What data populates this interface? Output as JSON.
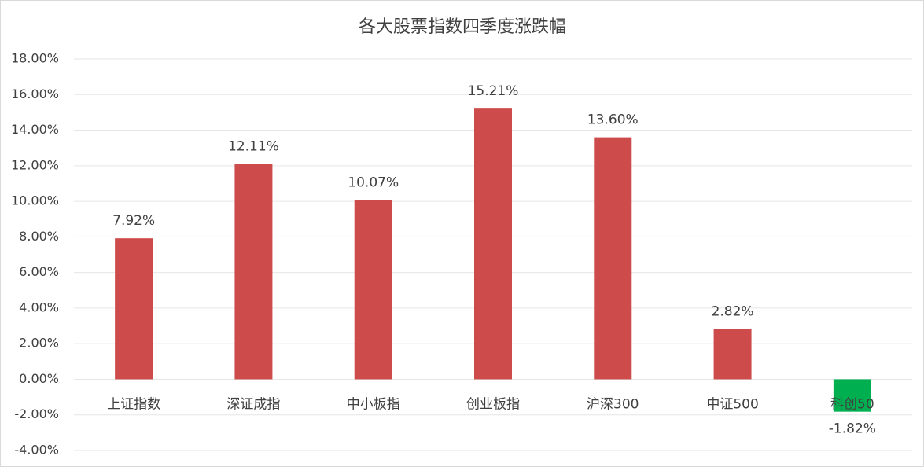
{
  "chart_data": {
    "type": "bar",
    "title": "各大股票指数四季度涨跌幅",
    "categories": [
      "上证指数",
      "深证成指",
      "中小板指",
      "创业板指",
      "沪深300",
      "中证500",
      "科创50"
    ],
    "values": [
      7.92,
      12.11,
      10.07,
      15.21,
      13.6,
      2.82,
      -1.82
    ],
    "value_labels": [
      "7.92%",
      "12.11%",
      "10.07%",
      "15.21%",
      "13.60%",
      "2.82%",
      "-1.82%"
    ],
    "colors": [
      "#cd4b4b",
      "#cd4b4b",
      "#cd4b4b",
      "#cd4b4b",
      "#cd4b4b",
      "#cd4b4b",
      "#00b050"
    ],
    "ylim": [
      -4,
      18
    ],
    "yticks": [
      {
        "value": -4,
        "label": "-4.00%"
      },
      {
        "value": -2,
        "label": "-2.00%"
      },
      {
        "value": 0,
        "label": "0.00%"
      },
      {
        "value": 2,
        "label": "2.00%"
      },
      {
        "value": 4,
        "label": "4.00%"
      },
      {
        "value": 6,
        "label": "6.00%"
      },
      {
        "value": 8,
        "label": "8.00%"
      },
      {
        "value": 10,
        "label": "10.00%"
      },
      {
        "value": 12,
        "label": "12.00%"
      },
      {
        "value": 14,
        "label": "14.00%"
      },
      {
        "value": 16,
        "label": "16.00%"
      },
      {
        "value": 18,
        "label": "18.00%"
      }
    ],
    "grid": true
  }
}
